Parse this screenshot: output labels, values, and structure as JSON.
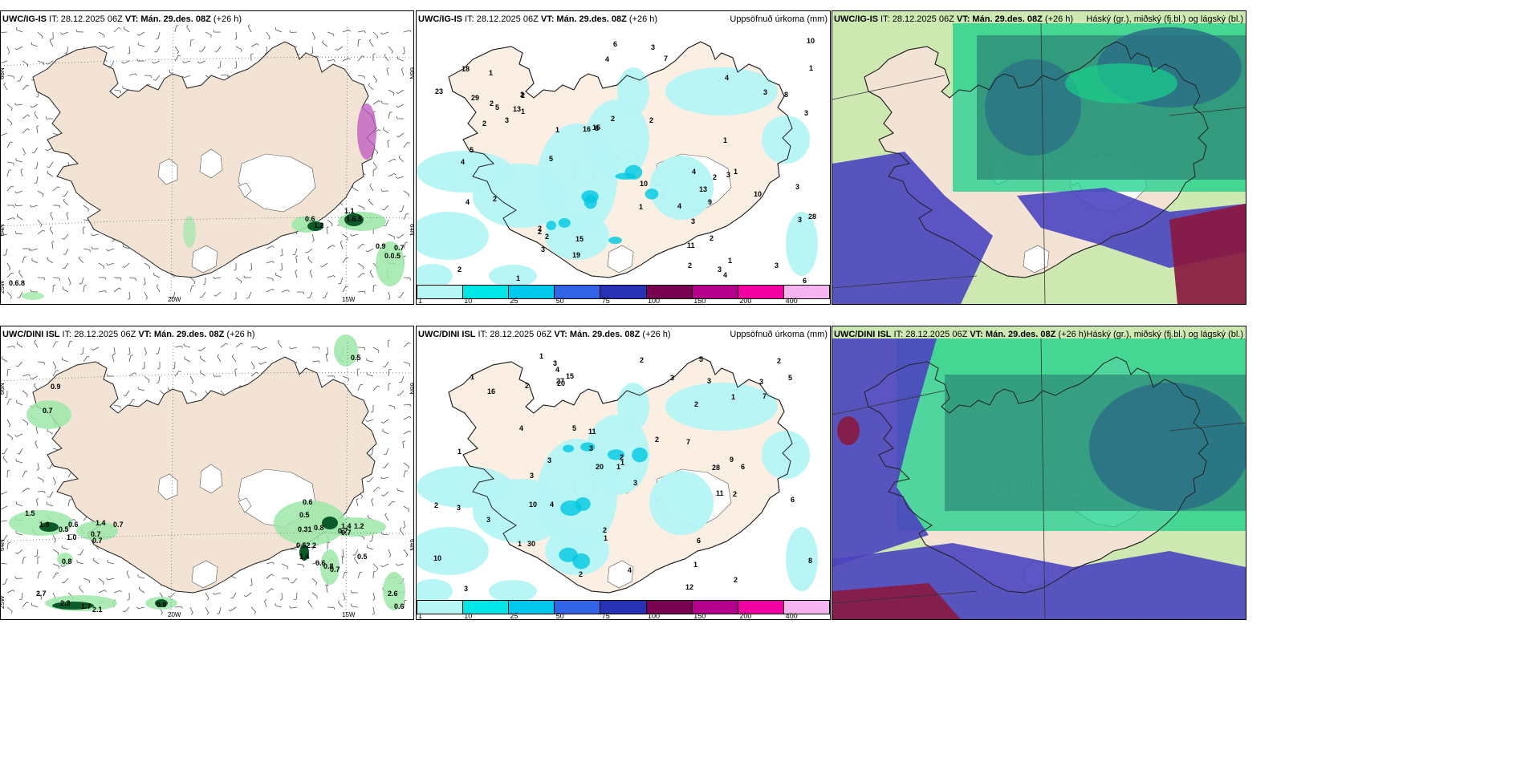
{
  "panels": [
    {
      "title_model": "UWC/IG-IS",
      "title_rest": " IT: 28.12.2025 06Z ",
      "title_vt_label": "VT:",
      "title_vt": " Mán. 29.des. 08Z",
      "title_lead": " (+26 h)",
      "right_label": "",
      "axis_labels": {
        "lat_left": "66N",
        "lat_left2": "64N",
        "lon_left": "25W",
        "lon_mid": "20W",
        "lon_right": "15W",
        "lat_right": "66N",
        "lat_right2": "64N"
      },
      "values": [
        "0.6",
        "1.2",
        "1.1",
        "1.6.5",
        "0.9",
        "0.7",
        "0.0.5",
        "0.6.8"
      ]
    },
    {
      "title_model": "UWC/IG-IS",
      "title_rest": " IT: 28.12.2025 06Z ",
      "title_vt_label": "VT:",
      "title_vt": " Mán. 29.des. 08Z",
      "title_lead": " (+26 h)",
      "right_label": "Uppsöfnuð úrkoma (mm)",
      "values": [
        "1",
        "3",
        "2",
        "1",
        "13",
        "19",
        "11",
        "16",
        "4",
        "3",
        "2",
        "7",
        "8",
        "4",
        "1",
        "3",
        "2",
        "8",
        "13",
        "15",
        "18",
        "28",
        "10",
        "10",
        "5",
        "6",
        "23",
        "10",
        "29",
        "4",
        "6",
        "1",
        "2",
        "3",
        "4",
        "1",
        "5",
        "2",
        "3",
        "3",
        "2",
        "2",
        "1",
        "1",
        "3",
        "3",
        "2",
        "3",
        "3",
        "4",
        "1",
        "2",
        "2",
        "9",
        "3",
        "4",
        "5",
        "15",
        "2",
        "2",
        "1",
        "2",
        "2",
        "4"
      ]
    },
    {
      "title_model": "UWC/IG-IS",
      "title_rest": " IT: 28.12.2025 06Z ",
      "title_vt_label": "VT:",
      "title_vt": " Mán. 29.des. 08Z",
      "title_lead": " (+26 h)",
      "right_label": "Háský (gr.), miðský (fj.bl.) og lágský (bl.)"
    },
    {
      "title_model": "UWC/DINI ISL",
      "title_rest": " IT: 28.12.2025 06Z ",
      "title_vt_label": "VT:",
      "title_vt": " Mán. 29.des. 08Z",
      "title_lead": " (+26 h)",
      "right_label": "",
      "axis_labels": {
        "lat_left": "66N",
        "lat_left2": "64N",
        "lon_left": "25W",
        "lon_mid": "20W",
        "lon_right": "15W",
        "lat_right": "66N",
        "lat_right2": "64N"
      },
      "values": [
        "0.5",
        "0.9",
        "0.7",
        "1.5",
        "1.8",
        "0.5",
        "0.6",
        "1.0",
        "0.7",
        "0.7",
        "1.4",
        "0.7",
        "0.8",
        "0.6",
        "0.5",
        "0.31",
        "0.8",
        "0.7",
        "0.52.2",
        "1.4",
        "0.6",
        "0.8",
        "0.7",
        "1.4",
        "1.2",
        "0.7",
        "0.5",
        "2.7",
        "2.3",
        "1.7",
        "2.1",
        "0.9",
        "2.6",
        "0.6"
      ]
    },
    {
      "title_model": "UWC/DINI ISL",
      "title_rest": " IT: 28.12.2025 06Z ",
      "title_vt_label": "VT:",
      "title_vt": " Mán. 29.des. 08Z",
      "title_lead": " (+26 h)",
      "right_label": "Uppsöfnuð úrkoma (mm)",
      "values": [
        "1",
        "2",
        "1",
        "3",
        "12",
        "7",
        "10",
        "8",
        "11",
        "2",
        "4",
        "3",
        "5",
        "6",
        "3",
        "5",
        "2",
        "4",
        "3",
        "3",
        "5",
        "15",
        "16",
        "20",
        "27",
        "11",
        "6",
        "4",
        "7",
        "28",
        "30",
        "10",
        "20",
        "3",
        "2",
        "1",
        "2",
        "3",
        "1",
        "1",
        "1",
        "2",
        "3",
        "1",
        "2",
        "9",
        "6",
        "3",
        "2",
        "4",
        "2",
        "1",
        "3",
        "1",
        "2",
        "2",
        "3"
      ]
    },
    {
      "title_model": "UWC/DINI ISL",
      "title_rest": " IT: 28.12.2025 06Z ",
      "title_vt_label": "VT:",
      "title_vt": " Mán. 29.des. 08Z",
      "title_lead": " (+26 h)",
      "right_label": "Háský (gr.), miðský (fj.bl.) og lágský (bl.)"
    }
  ],
  "legend": {
    "colors": [
      "#b8f6f6",
      "#00e6e6",
      "#00c8ec",
      "#3264e6",
      "#2832b4",
      "#780050",
      "#b4008c",
      "#f000a0",
      "#f5b4f0"
    ],
    "ticks": [
      "1",
      "10",
      "25",
      "50",
      "75",
      "100",
      "150",
      "200",
      "400"
    ]
  },
  "colors": {
    "land": "#f2e3d5",
    "precip_light": "#b4f4f4",
    "precip_mid": "#00c8e0",
    "precip_green": "#9ee8a8",
    "precip_dark_green": "#0a5a2a",
    "cloud_high": "#2d8c78",
    "cloud_mid": "#2a6e86",
    "cloud_low": "#4b44c0",
    "cloud_green": "#18d08a",
    "cloud_lightgreen": "#cde8b0",
    "cloud_red": "#8a1840"
  }
}
